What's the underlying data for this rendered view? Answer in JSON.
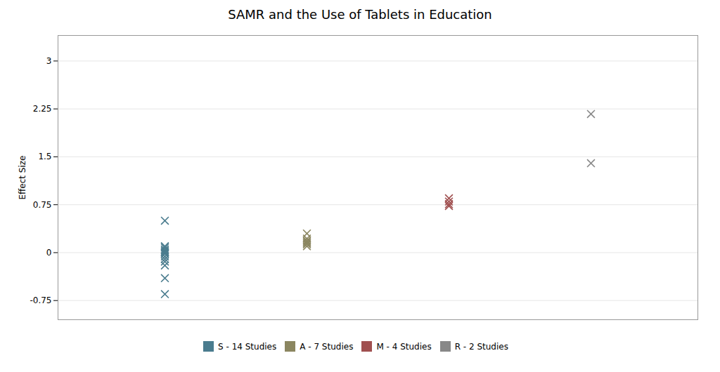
{
  "chart_data": {
    "type": "scatter",
    "title": "SAMR and the Use of Tablets in Education",
    "ylabel": "Effect Size",
    "ylim": [
      -1.05,
      3.4
    ],
    "yticks": [
      -0.75,
      0,
      0.75,
      1.5,
      2.25,
      3
    ],
    "grid": true,
    "legend": "bottom",
    "marker": "x",
    "tick_labels": "y",
    "series": [
      {
        "name": "S - 14 Studies",
        "color": "#4a7c8e",
        "values": [
          0.5,
          0.1,
          0.08,
          0.05,
          0.03,
          0.01,
          0.0,
          -0.02,
          -0.06,
          -0.1,
          -0.14,
          -0.2,
          -0.4,
          -0.65
        ]
      },
      {
        "name": "A - 7 Studies",
        "color": "#8b8660",
        "values": [
          0.3,
          0.22,
          0.19,
          0.17,
          0.15,
          0.13,
          0.1
        ]
      },
      {
        "name": "M - 4 Studies",
        "color": "#a05050",
        "values": [
          0.85,
          0.8,
          0.76,
          0.73
        ]
      },
      {
        "name": "R - 2 Studies",
        "color": "#888888",
        "values": [
          2.17,
          1.4
        ]
      }
    ]
  }
}
